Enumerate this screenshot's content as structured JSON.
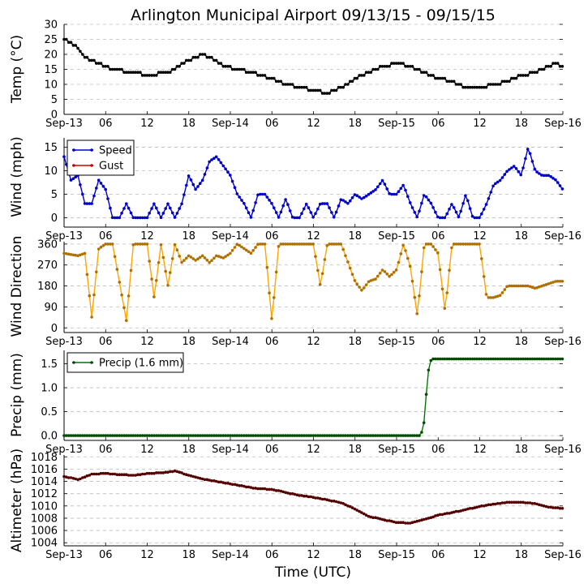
{
  "title": "Arlington Municipal Airport 09/13/15 - 09/15/15",
  "xlabel": "Time (UTC)",
  "chart_data": [
    {
      "type": "line",
      "id": "temp",
      "ylabel": "Temp (°C)",
      "ylim": [
        0,
        30
      ],
      "yticks": [
        0,
        5,
        10,
        15,
        20,
        25,
        30
      ],
      "xticks": [
        "Sep-13",
        "06",
        "12",
        "18",
        "Sep-14",
        "06",
        "12",
        "18",
        "Sep-15",
        "06",
        "12",
        "18",
        "Sep-16"
      ],
      "grid": true,
      "legend": null,
      "series": [
        {
          "name": "Temp",
          "color": "#000000",
          "marker_color": "#000000",
          "anchors": [
            [
              0,
              25
            ],
            [
              2,
              22
            ],
            [
              3,
              19
            ],
            [
              5,
              17
            ],
            [
              7,
              15
            ],
            [
              10,
              14
            ],
            [
              12,
              13
            ],
            [
              15,
              14
            ],
            [
              17,
              17
            ],
            [
              19,
              19
            ],
            [
              20,
              20
            ],
            [
              21,
              19
            ],
            [
              23,
              16
            ],
            [
              25,
              15
            ],
            [
              27,
              14
            ],
            [
              30,
              12
            ],
            [
              32,
              10
            ],
            [
              34,
              9
            ],
            [
              36,
              8
            ],
            [
              38,
              7
            ],
            [
              39,
              8
            ],
            [
              40,
              9
            ],
            [
              42,
              12
            ],
            [
              44,
              14
            ],
            [
              46,
              16
            ],
            [
              48,
              17
            ],
            [
              50,
              16
            ],
            [
              52,
              14
            ],
            [
              54,
              12
            ],
            [
              56,
              11
            ],
            [
              58,
              9
            ],
            [
              60,
              9
            ],
            [
              62,
              10
            ],
            [
              64,
              11
            ],
            [
              66,
              13
            ],
            [
              68,
              14
            ],
            [
              69,
              15
            ],
            [
              70,
              16
            ],
            [
              71,
              17
            ],
            [
              72,
              16
            ]
          ]
        }
      ]
    },
    {
      "type": "line",
      "id": "wind",
      "ylabel": "Wind (mph)",
      "ylim": [
        -2,
        17
      ],
      "yticks": [
        0,
        5,
        10,
        15
      ],
      "xticks": [
        "Sep-13",
        "06",
        "12",
        "18",
        "Sep-14",
        "06",
        "12",
        "18",
        "Sep-15",
        "06",
        "12",
        "18",
        "Sep-16"
      ],
      "grid": true,
      "legend": "top-left",
      "series": [
        {
          "name": "Speed",
          "color": "#0000cc",
          "marker_color": "#0000cc",
          "anchors": [
            [
              0,
              13
            ],
            [
              1,
              8
            ],
            [
              2,
              9
            ],
            [
              3,
              3
            ],
            [
              4,
              3
            ],
            [
              5,
              8
            ],
            [
              6,
              6
            ],
            [
              7,
              0
            ],
            [
              8,
              0
            ],
            [
              9,
              3
            ],
            [
              10,
              0
            ],
            [
              11,
              0
            ],
            [
              12,
              0
            ],
            [
              13,
              3
            ],
            [
              14,
              0
            ],
            [
              15,
              3
            ],
            [
              16,
              0
            ],
            [
              17,
              3
            ],
            [
              18,
              9
            ],
            [
              19,
              6
            ],
            [
              20,
              8
            ],
            [
              21,
              12
            ],
            [
              22,
              13
            ],
            [
              23,
              11
            ],
            [
              24,
              9
            ],
            [
              25,
              5
            ],
            [
              26,
              3
            ],
            [
              27,
              0
            ],
            [
              28,
              5
            ],
            [
              29,
              5
            ],
            [
              30,
              3
            ],
            [
              31,
              0
            ],
            [
              32,
              4
            ],
            [
              33,
              0
            ],
            [
              34,
              0
            ],
            [
              35,
              3
            ],
            [
              36,
              0
            ],
            [
              37,
              3
            ],
            [
              38,
              3
            ],
            [
              39,
              0
            ],
            [
              40,
              4
            ],
            [
              41,
              3
            ],
            [
              42,
              5
            ],
            [
              43,
              4
            ],
            [
              44,
              5
            ],
            [
              45,
              6
            ],
            [
              46,
              8
            ],
            [
              47,
              5
            ],
            [
              48,
              5
            ],
            [
              49,
              7
            ],
            [
              50,
              3
            ],
            [
              51,
              0
            ],
            [
              52,
              5
            ],
            [
              53,
              3
            ],
            [
              54,
              0
            ],
            [
              55,
              0
            ],
            [
              56,
              3
            ],
            [
              57,
              0
            ],
            [
              58,
              5
            ],
            [
              59,
              0
            ],
            [
              60,
              0
            ],
            [
              61,
              3
            ],
            [
              62,
              7
            ],
            [
              63,
              8
            ],
            [
              64,
              10
            ],
            [
              65,
              11
            ],
            [
              66,
              9
            ],
            [
              67,
              15
            ],
            [
              68,
              10
            ],
            [
              69,
              9
            ],
            [
              70,
              9
            ],
            [
              71,
              8
            ],
            [
              72,
              6
            ]
          ]
        },
        {
          "name": "Gust",
          "color": "#cc0000",
          "marker_color": "#cc0000",
          "anchors": []
        }
      ]
    },
    {
      "type": "line",
      "id": "dir",
      "ylabel": "Wind Direction",
      "ylim": [
        -20,
        370
      ],
      "yticks": [
        0,
        90,
        180,
        270,
        360
      ],
      "xticks": [
        "Sep-13",
        "06",
        "12",
        "18",
        "Sep-14",
        "06",
        "12",
        "18",
        "Sep-15",
        "06",
        "12",
        "18",
        "Sep-16"
      ],
      "grid": true,
      "legend": null,
      "series": [
        {
          "name": "Direction",
          "color": "#ffa500",
          "marker_color": "#b07000",
          "anchors": [
            [
              0,
              320
            ],
            [
              2,
              310
            ],
            [
              3,
              320
            ],
            [
              4,
              45
            ],
            [
              5,
              340
            ],
            [
              6,
              360
            ],
            [
              7,
              360
            ],
            [
              9,
              30
            ],
            [
              10,
              360
            ],
            [
              12,
              360
            ],
            [
              13,
              130
            ],
            [
              14,
              360
            ],
            [
              15,
              180
            ],
            [
              16,
              360
            ],
            [
              17,
              280
            ],
            [
              18,
              310
            ],
            [
              19,
              290
            ],
            [
              20,
              310
            ],
            [
              21,
              280
            ],
            [
              22,
              310
            ],
            [
              23,
              300
            ],
            [
              24,
              320
            ],
            [
              25,
              360
            ],
            [
              26,
              340
            ],
            [
              27,
              320
            ],
            [
              28,
              360
            ],
            [
              29,
              360
            ],
            [
              30,
              30
            ],
            [
              31,
              360
            ],
            [
              33,
              360
            ],
            [
              34,
              360
            ],
            [
              36,
              360
            ],
            [
              37,
              180
            ],
            [
              38,
              360
            ],
            [
              40,
              360
            ],
            [
              42,
              200
            ],
            [
              43,
              160
            ],
            [
              44,
              200
            ],
            [
              45,
              210
            ],
            [
              46,
              250
            ],
            [
              47,
              220
            ],
            [
              48,
              250
            ],
            [
              49,
              360
            ],
            [
              50,
              260
            ],
            [
              51,
              50
            ],
            [
              52,
              360
            ],
            [
              53,
              360
            ],
            [
              54,
              320
            ],
            [
              55,
              70
            ],
            [
              56,
              360
            ],
            [
              57,
              360
            ],
            [
              58,
              360
            ],
            [
              59,
              360
            ],
            [
              60,
              360
            ],
            [
              61,
              130
            ],
            [
              62,
              130
            ],
            [
              63,
              140
            ],
            [
              64,
              180
            ],
            [
              65,
              180
            ],
            [
              66,
              180
            ],
            [
              67,
              180
            ],
            [
              68,
              170
            ],
            [
              69,
              180
            ],
            [
              70,
              190
            ],
            [
              71,
              200
            ],
            [
              72,
              200
            ]
          ]
        }
      ]
    },
    {
      "type": "line",
      "id": "precip",
      "ylabel": "Precip (mm)",
      "ylim": [
        -0.1,
        1.78
      ],
      "yticks": [
        0.0,
        0.5,
        1.0,
        1.5
      ],
      "xticks": [
        "Sep-13",
        "06",
        "12",
        "18",
        "Sep-14",
        "06",
        "12",
        "18",
        "Sep-15",
        "06",
        "12",
        "18",
        "Sep-16"
      ],
      "grid": true,
      "legend": "top-left",
      "series": [
        {
          "name": "Precip (1.6 mm)",
          "color": "#007700",
          "marker_color": "#004d00",
          "anchors": [
            [
              0,
              0
            ],
            [
              51.5,
              0
            ],
            [
              52,
              0.3
            ],
            [
              52.5,
              1.3
            ],
            [
              53,
              1.6
            ],
            [
              72,
              1.6
            ]
          ]
        }
      ]
    },
    {
      "type": "line",
      "id": "alti",
      "ylabel": "Altimeter (hPa)",
      "ylim": [
        1003.5,
        1018.3
      ],
      "yticks": [
        1004,
        1006,
        1008,
        1010,
        1012,
        1014,
        1016,
        1018
      ],
      "xticks": [
        "Sep-13",
        "06",
        "12",
        "18",
        "Sep-14",
        "06",
        "12",
        "18",
        "Sep-15",
        "06",
        "12",
        "18",
        "Sep-16"
      ],
      "grid": true,
      "legend": null,
      "series": [
        {
          "name": "Altimeter",
          "color": "#880000",
          "marker_color": "#550000",
          "anchors": [
            [
              0,
              1014.8
            ],
            [
              2,
              1014.3
            ],
            [
              4,
              1015.2
            ],
            [
              6,
              1015.3
            ],
            [
              8,
              1015.1
            ],
            [
              10,
              1015.0
            ],
            [
              12,
              1015.3
            ],
            [
              14,
              1015.4
            ],
            [
              16,
              1015.7
            ],
            [
              18,
              1015.0
            ],
            [
              20,
              1014.4
            ],
            [
              22,
              1014.0
            ],
            [
              24,
              1013.6
            ],
            [
              26,
              1013.2
            ],
            [
              28,
              1012.8
            ],
            [
              30,
              1012.7
            ],
            [
              32,
              1012.2
            ],
            [
              34,
              1011.7
            ],
            [
              36,
              1011.4
            ],
            [
              38,
              1011.0
            ],
            [
              40,
              1010.5
            ],
            [
              42,
              1009.5
            ],
            [
              44,
              1008.3
            ],
            [
              46,
              1007.8
            ],
            [
              48,
              1007.3
            ],
            [
              50,
              1007.2
            ],
            [
              52,
              1007.8
            ],
            [
              54,
              1008.5
            ],
            [
              56,
              1008.9
            ],
            [
              58,
              1009.4
            ],
            [
              60,
              1009.9
            ],
            [
              62,
              1010.3
            ],
            [
              64,
              1010.6
            ],
            [
              66,
              1010.6
            ],
            [
              68,
              1010.4
            ],
            [
              70,
              1009.8
            ],
            [
              72,
              1009.6
            ]
          ]
        }
      ]
    }
  ]
}
